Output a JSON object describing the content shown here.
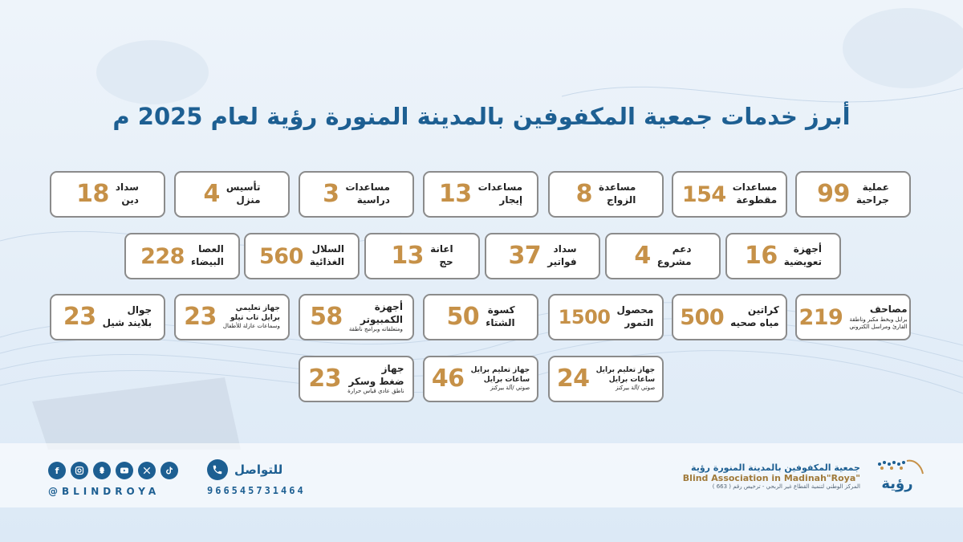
{
  "title": "أبرز خدمات جمعية المكفوفين بالمدينة المنورة رؤية لعام 2025 م",
  "colors": {
    "accent": "#1d5f92",
    "number": "#c69148",
    "card_border": "#8b8b8b"
  },
  "services": [
    {
      "value": "99",
      "label": [
        "عملية",
        "جراحية"
      ]
    },
    {
      "value": "154",
      "label": [
        "مساعدات",
        "مقطوعة"
      ]
    },
    {
      "value": "8",
      "label": [
        "مساعدة",
        "الزواج"
      ]
    },
    {
      "value": "13",
      "label": [
        "مساعدات",
        "إيجار"
      ]
    },
    {
      "value": "3",
      "label": [
        "مساعدات",
        "دراسية"
      ]
    },
    {
      "value": "4",
      "label": [
        "تأسيس",
        "منزل"
      ]
    },
    {
      "value": "18",
      "label": [
        "سداد",
        "دين"
      ]
    },
    {
      "value": "16",
      "label": [
        "أجهزة",
        "تعويضية"
      ]
    },
    {
      "value": "4",
      "label": [
        "دعم",
        "مشروع"
      ]
    },
    {
      "value": "37",
      "label": [
        "سداد",
        "فواتير"
      ]
    },
    {
      "value": "13",
      "label": [
        "اعانة",
        "حج"
      ]
    },
    {
      "value": "560",
      "label": [
        "السلال",
        "الغذائية"
      ]
    },
    {
      "value": "228",
      "label": [
        "العصا",
        "البيضاء"
      ]
    },
    {
      "value": "219",
      "label": [
        "مصاحف"
      ],
      "sub": [
        "برايل وبخط مكبر وناطقة",
        "القارئ ومراسل الكتروني"
      ]
    },
    {
      "value": "500",
      "label": [
        "كراتين",
        "مياه صحيه"
      ]
    },
    {
      "value": "1500",
      "label": [
        "محصول",
        "التمور"
      ]
    },
    {
      "value": "50",
      "label": [
        "كسوة",
        "الشتاء"
      ]
    },
    {
      "value": "58",
      "label": [
        "أجهزة",
        "الكمبيوتر"
      ],
      "sub": [
        "ومتعلقاته وبرامج ناطقة"
      ]
    },
    {
      "value": "23",
      "label": [
        "جهاز تعليمي",
        "برايل تاب تيلو"
      ],
      "sub": [
        "وسماعات عازلة للأطفال"
      ]
    },
    {
      "value": "23",
      "label": [
        "جوال",
        "بلايند شيل"
      ]
    },
    {
      "value": "24",
      "label": [
        "جهاز تعليم برايل",
        "ساعات برايل"
      ],
      "sub": [
        "صوتي /آلة بيركنز"
      ]
    },
    {
      "value": "46",
      "label": [
        "جهاز تعليم برايل",
        "ساعات برايل"
      ],
      "sub": [
        "صوتي /آلة بيركنز"
      ]
    },
    {
      "value": "23",
      "label": [
        "جهاز",
        "ضغط وسكر"
      ],
      "sub": [
        "ناطق عادي قياس حرارة"
      ]
    }
  ],
  "footer": {
    "org_ar": "جمعية المكفوفين بالمدينة المنورة رؤية",
    "org_en": "Blind Association in Madinah\"Roya\"",
    "org_sub": "المركز الوطني لتنمية القطاع غير الربحي - ترخيص رقم ( 663 )",
    "logo_text": "رؤية",
    "contact_label": "للتواصل",
    "phone": "966545731464",
    "handle": "@BLINDROYA",
    "social_icons": [
      "facebook-icon",
      "instagram-icon",
      "snapchat-icon",
      "youtube-icon",
      "x-icon",
      "tiktok-icon"
    ]
  }
}
